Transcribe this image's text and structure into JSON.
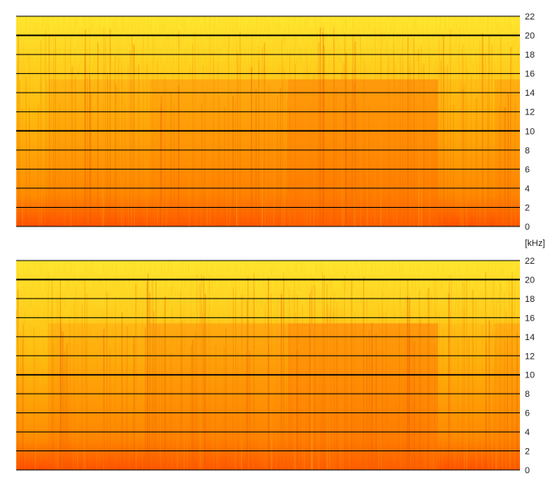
{
  "chart_data": [
    {
      "type": "heatmap",
      "title": "",
      "xlabel": "",
      "ylabel": "[kHz]",
      "ylim": [
        0,
        22
      ],
      "y_ticks": [
        "0",
        "2",
        "4",
        "6",
        "8",
        "10",
        "12",
        "14",
        "16",
        "18",
        "20",
        "22"
      ],
      "emphasized_gridlines": [
        "20",
        "10"
      ],
      "colormap": [
        "#ffe830",
        "#ffbf10",
        "#ff8c00",
        "#ff4a00"
      ],
      "grid": true
    },
    {
      "type": "heatmap",
      "title": "",
      "xlabel": "",
      "ylabel": "[kHz]",
      "ylim": [
        0,
        22
      ],
      "y_ticks": [
        "0",
        "2",
        "4",
        "6",
        "8",
        "10",
        "12",
        "14",
        "16",
        "18",
        "20",
        "22"
      ],
      "emphasized_gridlines": [
        "20",
        "10"
      ],
      "colormap": [
        "#ffe830",
        "#ffbf10",
        "#ff8c00",
        "#ff4a00"
      ],
      "grid": true
    }
  ],
  "unit_label": "[kHz]"
}
